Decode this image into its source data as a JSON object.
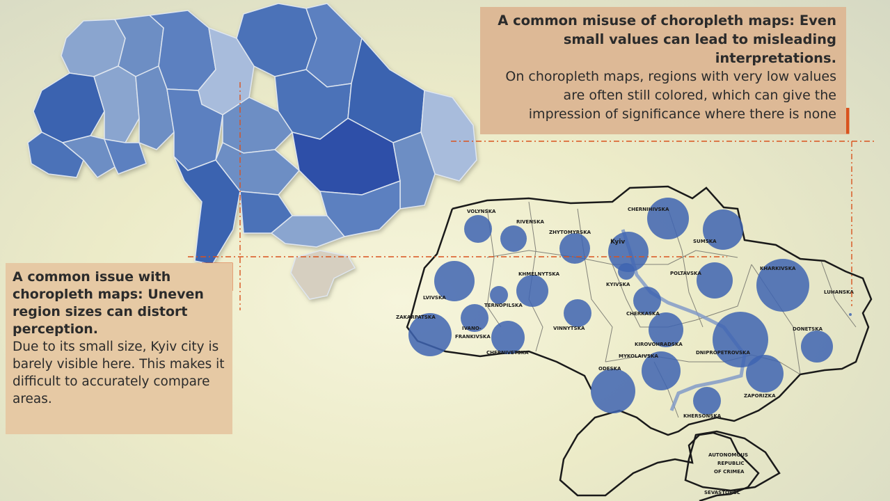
{
  "callout_top": {
    "title": "A common misuse of choropleth maps: Even small values can lead to misleading interpretations.",
    "body": "On choropleth maps, regions with very low values are often still colored, which can give the impression of significance where there is none"
  },
  "callout_left": {
    "title": "A common issue with choropleth maps: Uneven region sizes can distort perception.",
    "body": "Due to its small size, Kyiv city is barely visible here. This makes it difficult to accurately compare areas."
  },
  "bubble_map": {
    "regions": [
      {
        "name": "VOLYNSKA"
      },
      {
        "name": "RIVENSKA"
      },
      {
        "name": "ZHYTOMYRSKA"
      },
      {
        "name": "Kyiv"
      },
      {
        "name": "CHERNIHIVSKA"
      },
      {
        "name": "SUMSKA"
      },
      {
        "name": "LVIVSKA"
      },
      {
        "name": "KHMELNYTSKA"
      },
      {
        "name": "TERNOPILSKA"
      },
      {
        "name": "KYIVSKA"
      },
      {
        "name": "POLTAVSKA"
      },
      {
        "name": "KHARKIVSKA"
      },
      {
        "name": "LUHANSKA"
      },
      {
        "name": "ZAKARPATSKA"
      },
      {
        "name": "IVANO-FRANKIVSKA"
      },
      {
        "name": "VINNYTSKA"
      },
      {
        "name": "CHERKASKA"
      },
      {
        "name": "CHERNIVETSKA"
      },
      {
        "name": "KIROVOHRADSKA"
      },
      {
        "name": "DNIPROPETROVSKA"
      },
      {
        "name": "DONETSKA"
      },
      {
        "name": "MYKOLAIVSKA"
      },
      {
        "name": "ODESKA"
      },
      {
        "name": "ZAPORIZKA"
      },
      {
        "name": "KHERSONSKA"
      },
      {
        "name": "AUTONOMOUS REPUBLIC OF CRIMEA"
      },
      {
        "name": "SEVASTOPOL"
      }
    ],
    "bubble_color": "#3e64b2"
  },
  "choropleth": {
    "colors": [
      "#2e50a8",
      "#3a63b0",
      "#4b72b8",
      "#5b80c0",
      "#6d8ec4",
      "#8aa5cf",
      "#a8bcdc",
      "#d6cfc0"
    ]
  },
  "colors": {
    "callout_bg": "#ddb996",
    "accent": "#d9531e"
  }
}
